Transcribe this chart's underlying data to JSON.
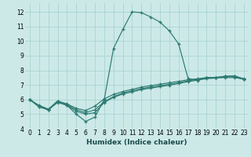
{
  "xlabel": "Humidex (Indice chaleur)",
  "bg_color": "#cce9e8",
  "grid_color": "#aad4d2",
  "line_color": "#2d7a72",
  "xlim": [
    -0.5,
    23.5
  ],
  "ylim": [
    4.0,
    12.6
  ],
  "xticks": [
    0,
    1,
    2,
    3,
    4,
    5,
    6,
    7,
    8,
    9,
    10,
    11,
    12,
    13,
    14,
    15,
    16,
    17,
    18,
    19,
    20,
    21,
    22,
    23
  ],
  "yticks": [
    4,
    5,
    6,
    7,
    8,
    9,
    10,
    11,
    12
  ],
  "curve1_y": [
    6.0,
    5.5,
    5.3,
    5.9,
    5.6,
    5.0,
    4.5,
    4.8,
    6.0,
    9.5,
    10.8,
    12.0,
    11.95,
    11.65,
    11.3,
    10.7,
    9.8,
    7.45,
    7.3,
    7.5,
    7.5,
    7.5,
    7.5,
    7.4
  ],
  "curve2_y": [
    6.0,
    5.6,
    5.35,
    5.9,
    5.7,
    5.4,
    5.25,
    5.55,
    6.05,
    6.35,
    6.55,
    6.7,
    6.85,
    6.95,
    7.05,
    7.15,
    7.25,
    7.35,
    7.42,
    7.5,
    7.52,
    7.6,
    7.62,
    7.42
  ],
  "curve3_y": [
    6.0,
    5.55,
    5.3,
    5.85,
    5.65,
    5.3,
    5.1,
    5.3,
    5.85,
    6.2,
    6.45,
    6.6,
    6.75,
    6.85,
    6.95,
    7.05,
    7.15,
    7.28,
    7.38,
    7.47,
    7.5,
    7.58,
    7.6,
    7.4
  ],
  "curve4_y": [
    6.0,
    5.5,
    5.3,
    5.8,
    5.6,
    5.2,
    5.0,
    5.1,
    5.8,
    6.15,
    6.38,
    6.52,
    6.68,
    6.78,
    6.88,
    6.98,
    7.1,
    7.22,
    7.33,
    7.43,
    7.47,
    7.55,
    7.57,
    7.38
  ]
}
